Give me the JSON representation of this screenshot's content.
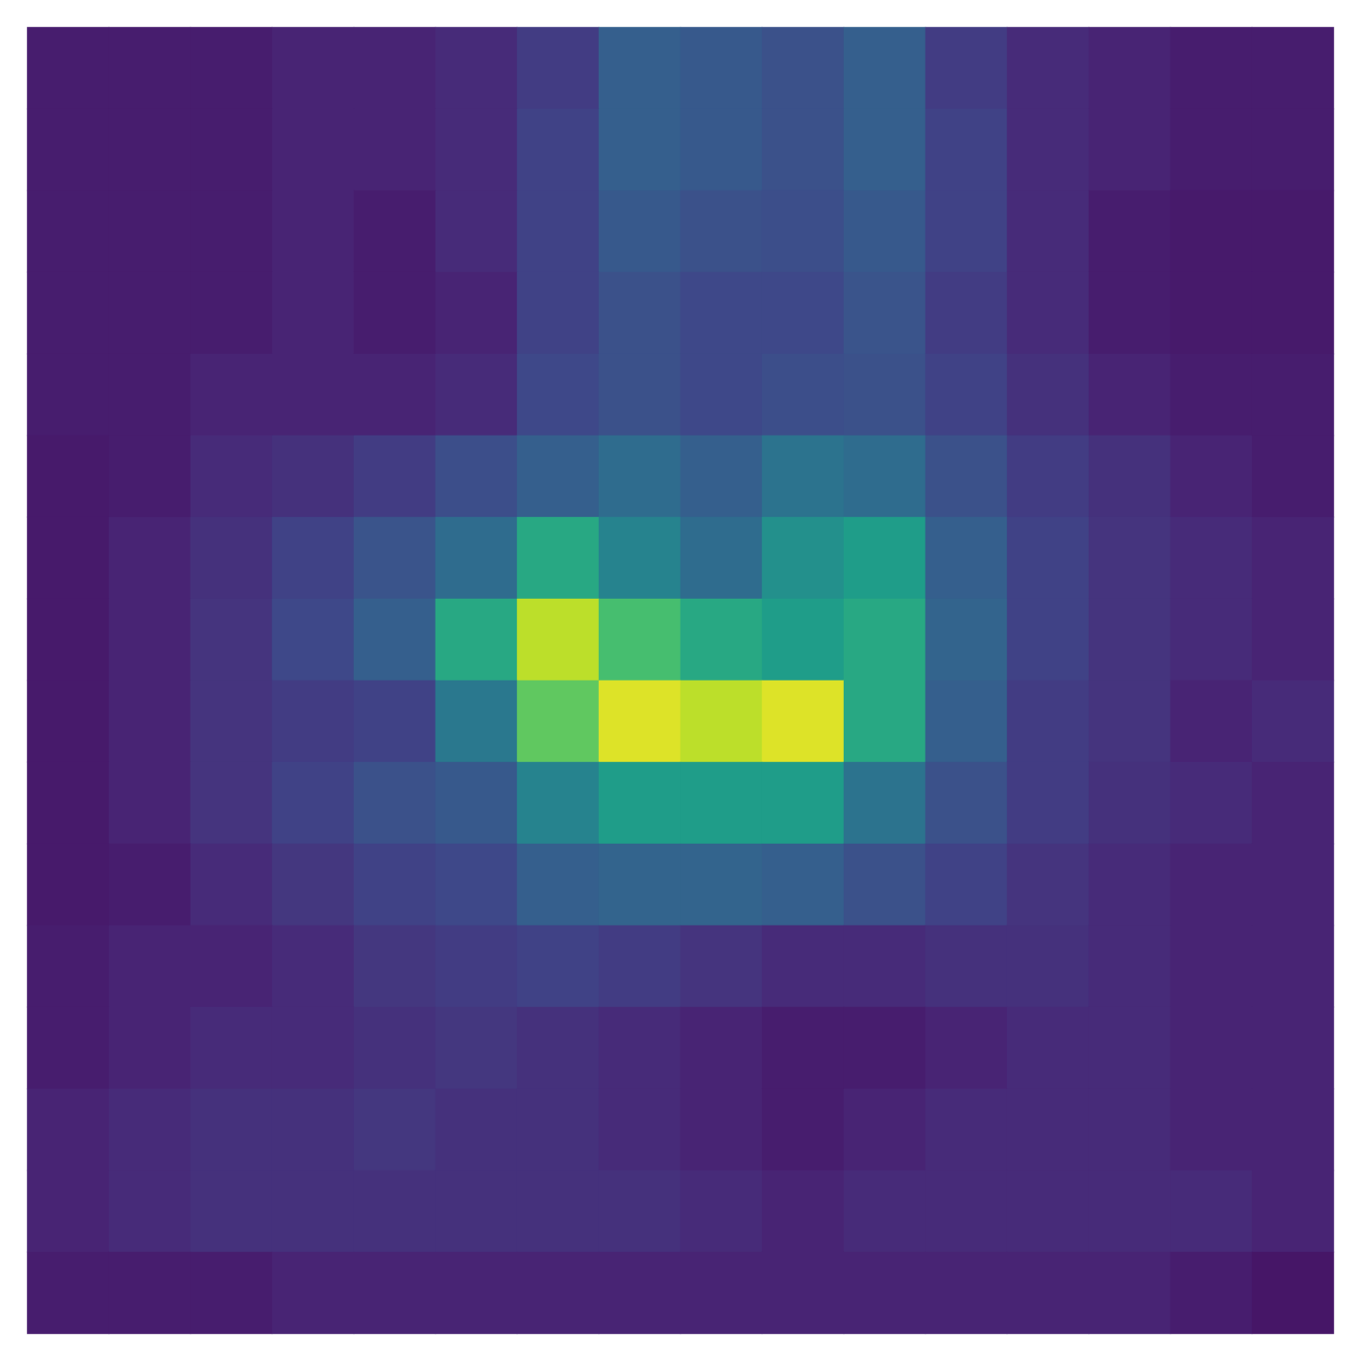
{
  "chart_data": {
    "type": "heatmap",
    "color": "viridis",
    "tick_labels": false,
    "color_range": [
      0,
      1
    ],
    "cells": [
      [
        0.08,
        0.08,
        0.08,
        0.1,
        0.1,
        0.12,
        0.18,
        0.3,
        0.28,
        0.25,
        0.3,
        0.18,
        0.12,
        0.1,
        0.08,
        0.08
      ],
      [
        0.08,
        0.08,
        0.08,
        0.1,
        0.1,
        0.12,
        0.2,
        0.3,
        0.28,
        0.25,
        0.3,
        0.2,
        0.12,
        0.1,
        0.08,
        0.08
      ],
      [
        0.08,
        0.08,
        0.08,
        0.1,
        0.08,
        0.12,
        0.2,
        0.28,
        0.25,
        0.24,
        0.28,
        0.2,
        0.12,
        0.08,
        0.07,
        0.07
      ],
      [
        0.08,
        0.08,
        0.08,
        0.1,
        0.08,
        0.1,
        0.2,
        0.25,
        0.22,
        0.22,
        0.26,
        0.18,
        0.12,
        0.08,
        0.07,
        0.07
      ],
      [
        0.08,
        0.08,
        0.1,
        0.1,
        0.1,
        0.12,
        0.22,
        0.25,
        0.22,
        0.24,
        0.25,
        0.2,
        0.14,
        0.1,
        0.08,
        0.08
      ],
      [
        0.07,
        0.08,
        0.12,
        0.14,
        0.18,
        0.24,
        0.3,
        0.35,
        0.3,
        0.38,
        0.35,
        0.25,
        0.18,
        0.14,
        0.1,
        0.08
      ],
      [
        0.07,
        0.1,
        0.14,
        0.2,
        0.26,
        0.35,
        0.6,
        0.45,
        0.35,
        0.5,
        0.55,
        0.3,
        0.2,
        0.15,
        0.12,
        0.1
      ],
      [
        0.07,
        0.1,
        0.15,
        0.22,
        0.3,
        0.6,
        0.9,
        0.7,
        0.6,
        0.55,
        0.6,
        0.32,
        0.2,
        0.15,
        0.12,
        0.1
      ],
      [
        0.07,
        0.1,
        0.15,
        0.18,
        0.2,
        0.4,
        0.75,
        0.95,
        0.9,
        0.95,
        0.6,
        0.3,
        0.18,
        0.15,
        0.1,
        0.12
      ],
      [
        0.07,
        0.1,
        0.15,
        0.2,
        0.25,
        0.28,
        0.45,
        0.55,
        0.55,
        0.55,
        0.38,
        0.25,
        0.18,
        0.14,
        0.12,
        0.1
      ],
      [
        0.07,
        0.08,
        0.12,
        0.16,
        0.2,
        0.22,
        0.3,
        0.32,
        0.32,
        0.3,
        0.25,
        0.2,
        0.15,
        0.12,
        0.1,
        0.1
      ],
      [
        0.08,
        0.1,
        0.1,
        0.12,
        0.16,
        0.18,
        0.2,
        0.18,
        0.15,
        0.12,
        0.12,
        0.14,
        0.14,
        0.12,
        0.1,
        0.1
      ],
      [
        0.08,
        0.1,
        0.12,
        0.12,
        0.14,
        0.16,
        0.14,
        0.12,
        0.1,
        0.08,
        0.08,
        0.1,
        0.12,
        0.12,
        0.1,
        0.1
      ],
      [
        0.1,
        0.12,
        0.14,
        0.14,
        0.16,
        0.14,
        0.14,
        0.12,
        0.1,
        0.08,
        0.1,
        0.12,
        0.12,
        0.12,
        0.1,
        0.1
      ],
      [
        0.1,
        0.12,
        0.14,
        0.14,
        0.14,
        0.14,
        0.14,
        0.14,
        0.12,
        0.1,
        0.12,
        0.12,
        0.12,
        0.12,
        0.12,
        0.1
      ],
      [
        0.08,
        0.08,
        0.08,
        0.1,
        0.1,
        0.1,
        0.1,
        0.1,
        0.1,
        0.1,
        0.1,
        0.1,
        0.1,
        0.1,
        0.08,
        0.06
      ]
    ]
  }
}
